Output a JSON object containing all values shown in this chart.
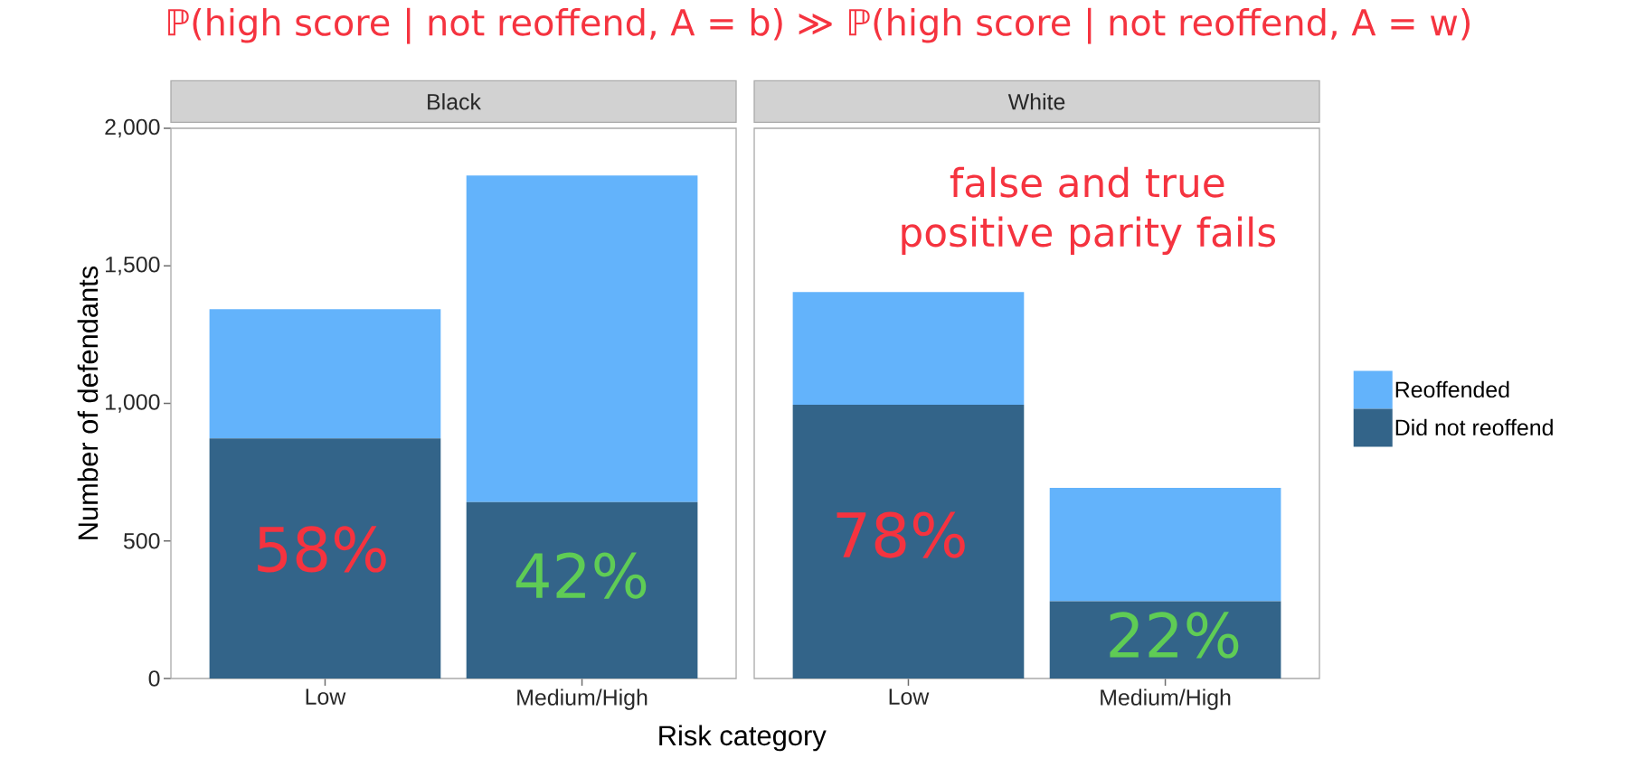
{
  "chart_data": [
    {
      "type": "bar",
      "title": "Black",
      "stacked": true,
      "categories": [
        "Low",
        "Medium/High"
      ],
      "xlabel": "Risk category",
      "ylabel": "Number of defendants",
      "ylim": [
        0,
        2000
      ],
      "yticks": [
        0,
        500,
        {
          "value": 1000,
          "label": "1,000"
        },
        {
          "value": 1500,
          "label": "1,500"
        },
        {
          "value": 2000,
          "label": "2,000"
        }
      ],
      "series": [
        {
          "color": "#336489",
          "values": [
            873,
            641
          ]
        },
        {
          "color": "#63b3fb",
          "values": [
            469,
            1187
          ]
        }
      ],
      "annotations": [
        "ℙ(high score | not reoffend, A = b) ≫ ℙ(high score | not reoffend, A = w)",
        "58%",
        "42%"
      ]
    },
    {
      "type": "bar",
      "title": "White",
      "stacked": true,
      "categories": [
        "Low",
        "Medium/High"
      ],
      "ylim": [
        0,
        2000
      ],
      "tick_labels": "x",
      "legend": "right",
      "series": [
        {
          "name": "Did not reoffend",
          "color": "#336489",
          "values": [
            995,
            281
          ]
        },
        {
          "name": "Reoffended",
          "color": "#63b3fb",
          "values": [
            410,
            412
          ]
        }
      ],
      "annotations": [
        "false and true positive parity fails",
        "78%",
        "22%"
      ]
    }
  ]
}
